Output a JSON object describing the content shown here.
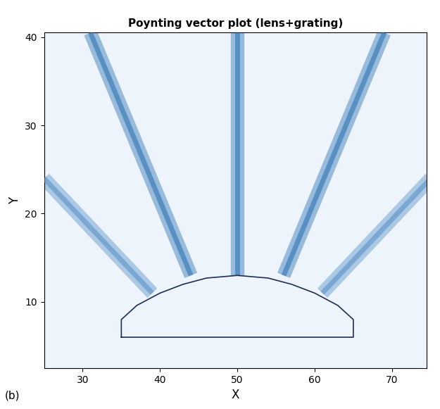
{
  "chart_data": {
    "type": "line",
    "title": "Poynting vector plot (lens+grating)",
    "x_label": "X",
    "y_label": "Y",
    "annotations": [
      "(b)"
    ],
    "xlim": [
      25,
      74.5
    ],
    "xticks": [
      30,
      40,
      50,
      60,
      70
    ],
    "ylim": [
      2.5,
      40.5
    ],
    "yticks": [
      10,
      20,
      30,
      40
    ],
    "grid": false,
    "series": [
      {
        "color": "#2f74b5",
        "line_style": "solid",
        "x": [
          50,
          50
        ],
        "y": [
          13,
          40.5
        ]
      },
      {
        "color": "#2f74b5",
        "line_style": "solid",
        "x": [
          44,
          31
        ],
        "y": [
          13,
          40.5
        ]
      },
      {
        "color": "#2f74b5",
        "line_style": "solid",
        "x": [
          56,
          69
        ],
        "y": [
          13,
          40.5
        ]
      },
      {
        "color": "#5b93c9",
        "line_style": "solid",
        "x": [
          39,
          25
        ],
        "y": [
          11,
          24
        ]
      },
      {
        "color": "#5b93c9",
        "line_style": "solid",
        "x": [
          61,
          75
        ],
        "y": [
          11,
          24
        ]
      },
      {
        "color": "#1e2d55",
        "line_style": "solid",
        "x": [
          35,
          35,
          37,
          40,
          43,
          46,
          50,
          54,
          57,
          60,
          63,
          65,
          65,
          35
        ],
        "y": [
          6,
          8,
          9.6,
          11,
          12,
          12.7,
          13,
          12.7,
          12,
          11,
          9.6,
          8,
          6,
          6
        ]
      }
    ]
  }
}
